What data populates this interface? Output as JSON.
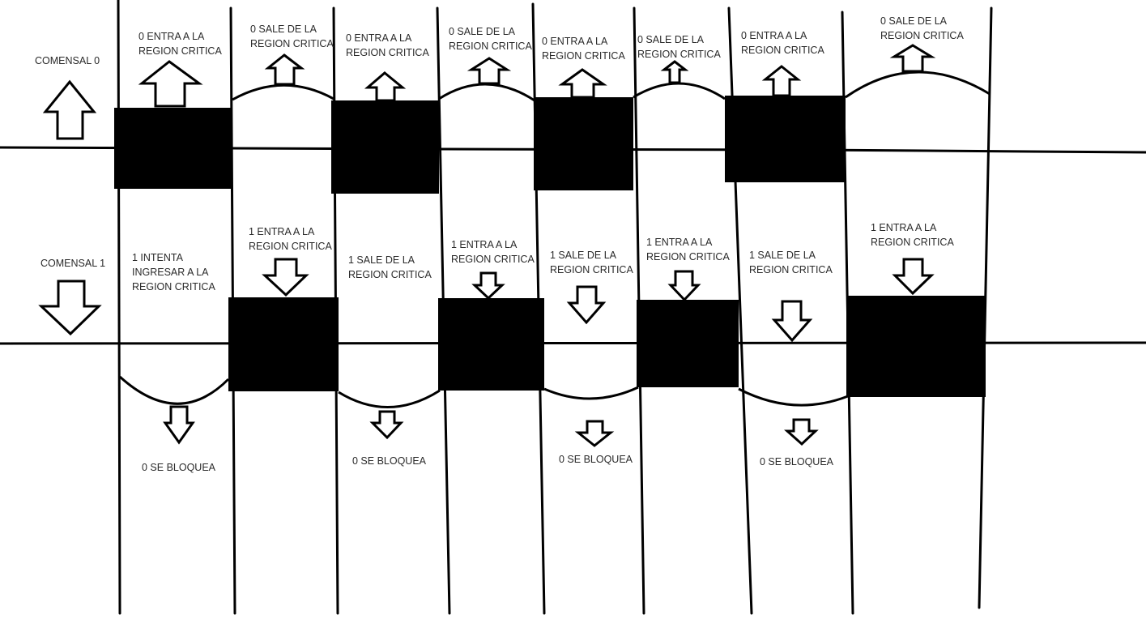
{
  "diagram": {
    "comensal_0": "COMENSAL 0",
    "comensal_1": "COMENSAL 1",
    "top": {
      "entra_1": [
        "0 ENTRA A LA",
        "REGION CRITICA"
      ],
      "sale_1": [
        "0 SALE DE LA",
        "REGION CRITICA"
      ],
      "entra_2": [
        "0 ENTRA A LA",
        "REGION CRITICA"
      ],
      "sale_2": [
        "0 SALE DE LA",
        "REGION CRITICA"
      ],
      "entra_3": [
        "0 ENTRA A LA",
        "REGION CRITICA"
      ],
      "sale_3": [
        "0 SALE DE LA",
        "REGION CRITICA"
      ],
      "entra_4": [
        "0 ENTRA A LA",
        "REGION CRITICA"
      ],
      "sale_4": [
        "0 SALE DE LA",
        "REGION CRITICA"
      ]
    },
    "middle": {
      "intenta": [
        "1 INTENTA",
        "INGRESAR A LA",
        "REGION CRITICA"
      ],
      "entra_1": [
        "1 ENTRA A LA",
        "REGION CRITICA"
      ],
      "sale_1": [
        "1 SALE DE LA",
        "REGION CRITICA"
      ],
      "entra_2": [
        "1 ENTRA A LA",
        "REGION CRITICA"
      ],
      "sale_2": [
        "1 SALE DE LA",
        "REGION CRITICA"
      ],
      "entra_3": [
        "1 ENTRA A LA",
        "REGION CRITICA"
      ],
      "sale_3": [
        "1 SALE DE LA",
        "REGION CRITICA"
      ],
      "entra_4": [
        "1 ENTRA A LA",
        "REGION CRITICA"
      ]
    },
    "bottom": {
      "bloquea_1": "0 SE BLOQUEA",
      "bloquea_2": "0 SE BLOQUEA",
      "bloquea_3": "0 SE BLOQUEA",
      "bloquea_4": "0 SE BLOQUEA"
    }
  }
}
